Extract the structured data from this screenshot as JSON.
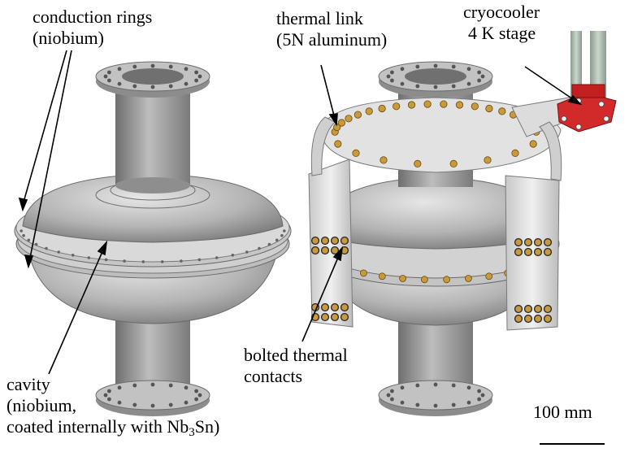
{
  "labels": {
    "conduction_rings": {
      "line1": "conduction rings",
      "line2": "(niobium)"
    },
    "thermal_link": {
      "line1": "thermal link",
      "line2": "(5N aluminum)"
    },
    "cryocooler": {
      "line1": "cryocooler",
      "line2": "4 K stage"
    },
    "cavity": {
      "line1": "cavity",
      "line2": "(niobium,",
      "line3_prefix": "coated internally with Nb",
      "line3_sub": "3",
      "line3_suffix": "Sn)"
    },
    "bolted_contacts": {
      "line1": "bolted thermal",
      "line2": "contacts"
    },
    "scale_bar": {
      "text": "100 mm"
    }
  },
  "colors": {
    "metal_light": "#d8d8d8",
    "metal_mid": "#a8a8a8",
    "metal_dark": "#6e6e6e",
    "bolt_brass": "#c89a3a",
    "cryocooler_red": "#d22a2a",
    "cryocooler_tube": "#a9b9ad"
  }
}
